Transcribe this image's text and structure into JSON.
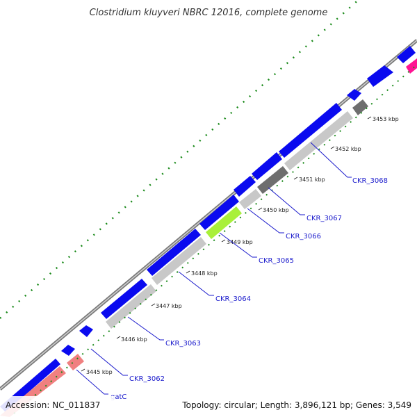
{
  "title": "Clostridium kluyveri NBRC 12016, complete genome",
  "footer": {
    "accession": "Accession: NC_011837",
    "summary": "Topology: circular; Length: 3,896,121 bp; Genes: 3,549"
  },
  "colors": {
    "cds_forward": "#0a0aef",
    "cds_reverse": "#c8c8c8",
    "cds_dark": "#6e6e6e",
    "highlight_green": "#a9f03a",
    "trna_salmon": "#f08080",
    "pink_feature": "#ff1493",
    "backbone": "#7a7a7a",
    "tick_green": "#1a8a1a",
    "label_blue": "#1a1acc"
  },
  "tick_labels": [
    "3445 kbp",
    "3446 kbp",
    "3447 kbp",
    "3448 kbp",
    "3449 kbp",
    "3450 kbp",
    "3451 kbp",
    "3452 kbp",
    "3453 kbp"
  ],
  "gene_labels": [
    "gatC",
    "CKR_3062",
    "CKR_3063",
    "CKR_3064",
    "CKR_3065",
    "CKR_3066",
    "CKR_3067",
    "CKR_3068"
  ]
}
